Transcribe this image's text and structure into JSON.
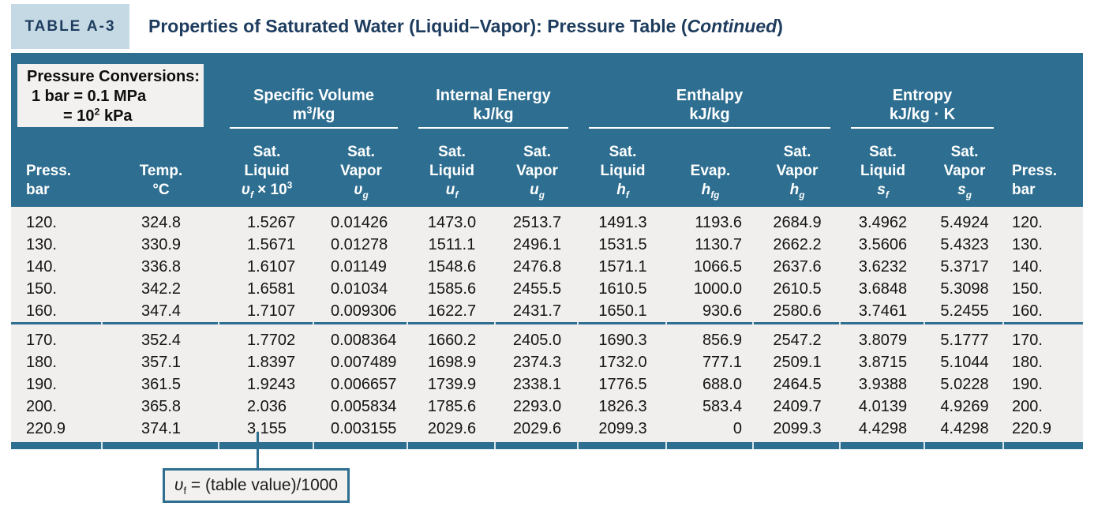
{
  "colors": {
    "teal": "#2e6e90",
    "navy": "#1d3c5e",
    "label_bg": "#c5d9e4",
    "data_bg": "#f0efed",
    "box_bg": "#f2f1ef"
  },
  "page": {
    "table_label": "TABLE A-3",
    "title_main": "Properties of Saturated Water (Liquid–Vapor): Pressure Table (",
    "title_italic": "Continued",
    "title_suffix": ")"
  },
  "conversions": {
    "line1": "Pressure Conversions:",
    "line2": "1 bar = 0.1 MPa",
    "line3_pre": "= 10",
    "line3_sup": "2",
    "line3_post": " kPa"
  },
  "groups": [
    {
      "name": "Specific Volume",
      "unit_pre": "m",
      "unit_sup": "3",
      "unit_post": "/kg"
    },
    {
      "name": "Internal Energy",
      "unit_pre": "kJ/kg"
    },
    {
      "name": "Enthalpy",
      "unit_pre": "kJ/kg"
    },
    {
      "name": "Entropy",
      "unit_pre": "kJ/kg · K"
    }
  ],
  "chart_data": {
    "type": "table",
    "title": "Properties of Saturated Water (Liquid–Vapor): Pressure Table (Continued)",
    "columns": [
      {
        "line1": "Press.",
        "line2": "bar"
      },
      {
        "line1": "Temp.",
        "line2": "°C"
      },
      {
        "line1": "Sat.",
        "line2": "Liquid",
        "sym": "υ",
        "sub": "f",
        "rest": " × 10",
        "sup": "3"
      },
      {
        "line1": "Sat.",
        "line2": "Vapor",
        "sym": "υ",
        "sub": "g"
      },
      {
        "line1": "Sat.",
        "line2": "Liquid",
        "sym": "u",
        "sub": "f"
      },
      {
        "line1": "Sat.",
        "line2": "Vapor",
        "sym": "u",
        "sub": "g"
      },
      {
        "line1": "Sat.",
        "line2": "Liquid",
        "sym": "h",
        "sub": "f"
      },
      {
        "line1": "Evap.",
        "sym": "h",
        "sub": "fg"
      },
      {
        "line1": "Sat.",
        "line2": "Vapor",
        "sym": "h",
        "sub": "g"
      },
      {
        "line1": "Sat.",
        "line2": "Liquid",
        "sym": "s",
        "sub": "f"
      },
      {
        "line1": "Sat.",
        "line2": "Vapor",
        "sym": "s",
        "sub": "g"
      },
      {
        "line1": "Press.",
        "line2": "bar"
      }
    ],
    "row_groups": [
      [
        [
          "120.",
          "324.8",
          "1.5267",
          "0.01426",
          "1473.0",
          "2513.7",
          "1491.3",
          "1193.6",
          "2684.9",
          "3.4962",
          "5.4924",
          "120."
        ],
        [
          "130.",
          "330.9",
          "1.5671",
          "0.01278",
          "1511.1",
          "2496.1",
          "1531.5",
          "1130.7",
          "2662.2",
          "3.5606",
          "5.4323",
          "130."
        ],
        [
          "140.",
          "336.8",
          "1.6107",
          "0.01149",
          "1548.6",
          "2476.8",
          "1571.1",
          "1066.5",
          "2637.6",
          "3.6232",
          "5.3717",
          "140."
        ],
        [
          "150.",
          "342.2",
          "1.6581",
          "0.01034",
          "1585.6",
          "2455.5",
          "1610.5",
          "1000.0",
          "2610.5",
          "3.6848",
          "5.3098",
          "150."
        ],
        [
          "160.",
          "347.4",
          "1.7107",
          "0.009306",
          "1622.7",
          "2431.7",
          "1650.1",
          "930.6",
          "2580.6",
          "3.7461",
          "5.2455",
          "160."
        ]
      ],
      [
        [
          "170.",
          "352.4",
          "1.7702",
          "0.008364",
          "1660.2",
          "2405.0",
          "1690.3",
          "856.9",
          "2547.2",
          "3.8079",
          "5.1777",
          "170."
        ],
        [
          "180.",
          "357.1",
          "1.8397",
          "0.007489",
          "1698.9",
          "2374.3",
          "1732.0",
          "777.1",
          "2509.1",
          "3.8715",
          "5.1044",
          "180."
        ],
        [
          "190.",
          "361.5",
          "1.9243",
          "0.006657",
          "1739.9",
          "2338.1",
          "1776.5",
          "688.0",
          "2464.5",
          "3.9388",
          "5.0228",
          "190."
        ],
        [
          "200.",
          "365.8",
          "2.036",
          "0.005834",
          "1785.6",
          "2293.0",
          "1826.3",
          "583.4",
          "2409.7",
          "4.0139",
          "4.9269",
          "200."
        ],
        [
          "220.9",
          "374.1",
          "3.155",
          "0.003155",
          "2029.6",
          "2029.6",
          "2099.3",
          "0",
          "2099.3",
          "4.4298",
          "4.4298",
          "220.9"
        ]
      ]
    ]
  },
  "note": {
    "sym": "υ",
    "sub": "f",
    "text": " = (table value)/1000"
  }
}
